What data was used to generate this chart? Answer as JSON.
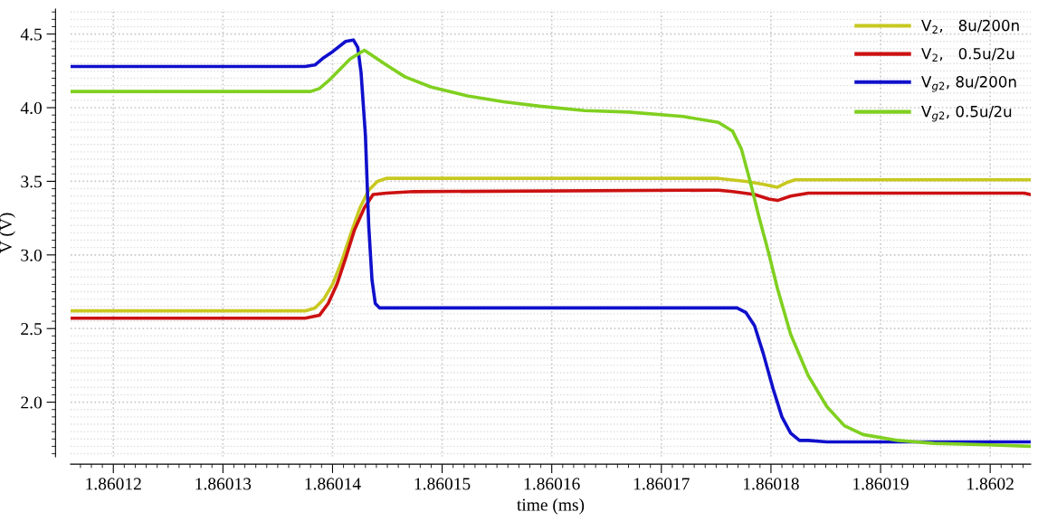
{
  "chart_data": {
    "type": "line",
    "xlabel": "time (ms)",
    "ylabel": "V (V)",
    "xlim": [
      1.8601161,
      1.8602037
    ],
    "ylim": [
      1.63,
      4.67
    ],
    "xticks": [
      1.86012,
      1.86013,
      1.86014,
      1.86015,
      1.86016,
      1.86017,
      1.86018,
      1.86019,
      1.8602
    ],
    "yticks": [
      {
        "value": 2,
        "label": "2.0"
      },
      {
        "value": 2.5,
        "label": "2.5"
      },
      {
        "value": 3,
        "label": "3.0"
      },
      {
        "value": 3.5,
        "label": "3.5"
      },
      {
        "value": 4,
        "label": "4.0"
      },
      {
        "value": 4.5,
        "label": "4.5"
      }
    ],
    "grid": true,
    "legend": "top right",
    "line_style": "solid",
    "marker": "none",
    "series": [
      {
        "name": "V$_{2}$,   8u/200n",
        "color": "#c8c820",
        "x": [
          1.8601161,
          1.8601375,
          1.8601384,
          1.8601392,
          1.86014,
          1.8601408,
          1.8601416,
          1.8601425,
          1.8601433,
          1.8601441,
          1.8601449,
          1.8601752,
          1.8601777,
          1.8601793,
          1.8601806,
          1.8601814,
          1.8601822,
          1.8602037
        ],
        "values": [
          2.62,
          2.62,
          2.64,
          2.7,
          2.8,
          2.95,
          3.13,
          3.32,
          3.44,
          3.5,
          3.52,
          3.52,
          3.5,
          3.48,
          3.46,
          3.49,
          3.51,
          3.51
        ]
      },
      {
        "name": "V$_{2}$,   0.5u/2u",
        "color": "#cc1111",
        "x": [
          1.8601161,
          1.8601375,
          1.8601388,
          1.8601396,
          1.8601404,
          1.8601412,
          1.860142,
          1.8601429,
          1.8601437,
          1.8601449,
          1.8601474,
          1.8601748,
          1.8601752,
          1.8601765,
          1.8601785,
          1.8601798,
          1.8601806,
          1.8601818,
          1.8601834,
          1.8602031,
          1.8602037
        ],
        "values": [
          2.57,
          2.57,
          2.59,
          2.67,
          2.8,
          2.98,
          3.17,
          3.32,
          3.41,
          3.42,
          3.43,
          3.44,
          3.44,
          3.43,
          3.41,
          3.38,
          3.37,
          3.4,
          3.42,
          3.42,
          3.41
        ]
      },
      {
        "name": "V$_{g2}$, 8u/200n",
        "color": "#1010cc",
        "x": [
          1.8601161,
          1.8601375,
          1.8601384,
          1.8601392,
          1.86014,
          1.8601412,
          1.8601419,
          1.8601423,
          1.8601426,
          1.860143,
          1.8601433,
          1.8601436,
          1.8601439,
          1.8601443,
          1.8601449,
          1.8601769,
          1.8601777,
          1.8601785,
          1.8601793,
          1.8601802,
          1.860181,
          1.8601818,
          1.8601826,
          1.8601834,
          1.8601851,
          1.8602037
        ],
        "values": [
          4.28,
          4.28,
          4.29,
          4.34,
          4.38,
          4.45,
          4.46,
          4.41,
          4.24,
          3.81,
          3.2,
          2.83,
          2.67,
          2.64,
          2.64,
          2.64,
          2.61,
          2.52,
          2.33,
          2.09,
          1.9,
          1.79,
          1.74,
          1.74,
          1.73,
          1.73
        ]
      },
      {
        "name": "V$_{g2}$, 0.5u/2u",
        "color": "#80d020",
        "x": [
          1.8601161,
          1.860138,
          1.8601388,
          1.8601396,
          1.8601404,
          1.8601416,
          1.8601429,
          1.8601437,
          1.8601449,
          1.8601466,
          1.860149,
          1.8601523,
          1.8601556,
          1.8601589,
          1.860163,
          1.860167,
          1.860172,
          1.8601752,
          1.8601765,
          1.8601773,
          1.8601781,
          1.8601789,
          1.8601798,
          1.8601806,
          1.8601818,
          1.8601834,
          1.8601851,
          1.8601867,
          1.8601884,
          1.8601916,
          1.8601949,
          1.8601998,
          1.8602037
        ],
        "values": [
          4.11,
          4.11,
          4.13,
          4.18,
          4.24,
          4.33,
          4.39,
          4.35,
          4.29,
          4.21,
          4.14,
          4.08,
          4.04,
          4.01,
          3.98,
          3.97,
          3.94,
          3.9,
          3.84,
          3.72,
          3.5,
          3.26,
          3.01,
          2.77,
          2.46,
          2.18,
          1.97,
          1.84,
          1.78,
          1.74,
          1.72,
          1.71,
          1.7
        ]
      }
    ]
  }
}
